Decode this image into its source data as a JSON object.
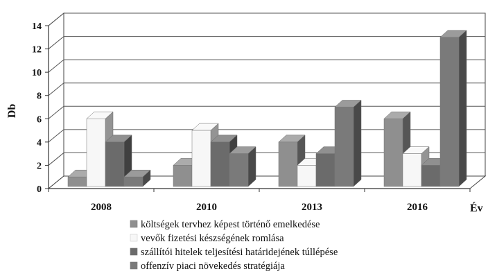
{
  "chart_data": {
    "type": "bar",
    "title": "",
    "xlabel": "Év",
    "ylabel": "Db",
    "ylim": [
      0,
      14
    ],
    "yticks": [
      0,
      2,
      4,
      6,
      8,
      10,
      12,
      14
    ],
    "grid": true,
    "style": "3d",
    "legend_position": "bottom",
    "categories": [
      "2008",
      "2010",
      "2013",
      "2016"
    ],
    "series": [
      {
        "name": "költségek tervhez képest történő emelkedése",
        "color": "#8f8f8f",
        "values": [
          1,
          2,
          4,
          6
        ]
      },
      {
        "name": "vevők fizetési készségének romlása",
        "color": "#f7f7f7",
        "values": [
          6,
          5,
          2,
          3
        ]
      },
      {
        "name": "szállítói hitelek teljesítési határidejének túllépése",
        "color": "#6b6b6b",
        "values": [
          4,
          4,
          3,
          2
        ]
      },
      {
        "name": "offenzív piaci növekedés stratégiája",
        "color": "#7a7a7a",
        "values": [
          1,
          3,
          7,
          13
        ]
      }
    ]
  }
}
